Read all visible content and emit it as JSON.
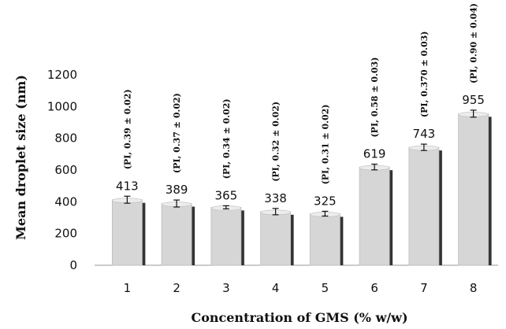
{
  "chart_data": {
    "type": "bar",
    "title": "",
    "xlabel": "Concentration of GMS (% w/w)",
    "ylabel": "Mean droplet size (nm)",
    "ylim": [
      0,
      1200
    ],
    "yticks": [
      0,
      200,
      400,
      600,
      800,
      1000,
      1200
    ],
    "categories": [
      "1",
      "2",
      "3",
      "4",
      "5",
      "6",
      "7",
      "8"
    ],
    "values": [
      413,
      389,
      365,
      338,
      325,
      619,
      743,
      955
    ],
    "value_labels": [
      "413",
      "389",
      "365",
      "338",
      "325",
      "619",
      "743",
      "955"
    ],
    "errors": [
      22,
      22,
      10,
      20,
      15,
      18,
      20,
      22
    ],
    "pi_labels": [
      "(PI, 0.39 ± 0.02)",
      "(PI, 0.37 ± 0.02)",
      "(PI, 0.34 ± 0.02)",
      "(PI, 0.32 ± 0.02)",
      "(PI, 0.31 ± 0.02)",
      "(PI, 0.58 ± 0.03)",
      "(PI, 0.370 ± 0.03)",
      "(PI, 0.90 ± 0.04)"
    ],
    "grid": false,
    "legend": "none",
    "bar_color": "#d6d6d6",
    "bar_shadow_color": "#333333"
  }
}
